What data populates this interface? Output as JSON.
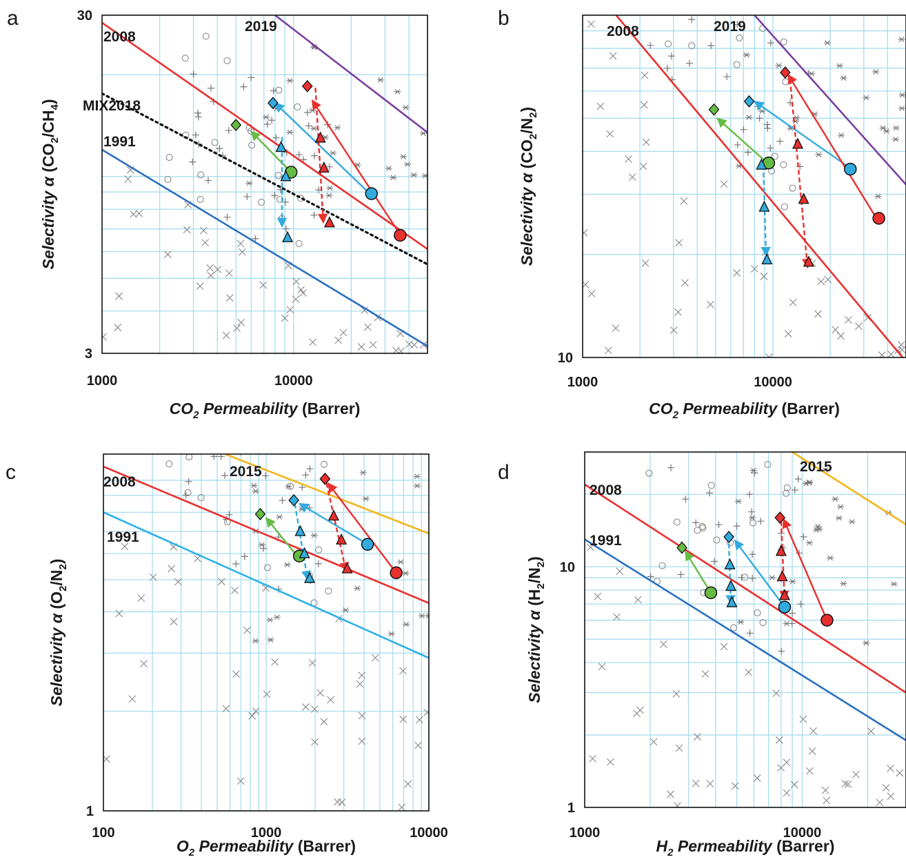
{
  "chart_data": [
    {
      "panel": "a",
      "type": "scatter",
      "xlabel": "CO2 Permeability (Barrer)",
      "ylabel": "Selectivity α (CO2/CH4)",
      "xlog": true,
      "ylog": true,
      "xlim": [
        1000,
        50000
      ],
      "ylim": [
        3,
        30
      ],
      "xticks": [
        "1000",
        "10000"
      ],
      "yticks": [
        "3",
        "30"
      ],
      "bounds": [
        {
          "name": "1991",
          "color": "#2a6fbf",
          "style": "solid",
          "points": [
            [
              1000,
              12
            ],
            [
              50000,
              3.15
            ]
          ]
        },
        {
          "name": "2008",
          "color": "#e8302e",
          "style": "solid",
          "points": [
            [
              1000,
              28.5
            ],
            [
              50000,
              6.1
            ]
          ]
        },
        {
          "name": "MIX2018",
          "color": "#111111",
          "style": "dotted",
          "points": [
            [
              1000,
              17.6
            ],
            [
              50000,
              5.5
            ]
          ]
        },
        {
          "name": "2019",
          "color": "#7a3fa0",
          "style": "solid",
          "points": [
            [
              8000,
              30
            ],
            [
              50000,
              13.5
            ]
          ]
        }
      ],
      "arrows": [
        {
          "color": "#66bb44",
          "style": "solid",
          "from": [
            9700,
            10.3
          ],
          "to": [
            6000,
            13.6
          ]
        },
        {
          "color": "#33aadd",
          "style": "solid",
          "from": [
            24000,
            9.1
          ],
          "to": [
            8000,
            16.5
          ]
        },
        {
          "color": "#33aadd",
          "style": "dashed",
          "from": [
            8700,
            13.1
          ],
          "to": [
            8700,
            7.1
          ]
        },
        {
          "color": "#e8302e",
          "style": "solid",
          "from": [
            35000,
            6.9
          ],
          "to": [
            12500,
            16.8
          ]
        },
        {
          "color": "#e8302e",
          "style": "dashed",
          "from": [
            13000,
            18.3
          ],
          "to": [
            14300,
            7.3
          ]
        }
      ],
      "markers": [
        {
          "shape": "diamond",
          "color": "#66bb44",
          "x": 5000,
          "y": 14.2
        },
        {
          "shape": "circle",
          "color": "#66bb44",
          "x": 9700,
          "y": 10.3
        },
        {
          "shape": "diamond",
          "color": "#33aadd",
          "x": 7800,
          "y": 16.5
        },
        {
          "shape": "circle",
          "color": "#33aadd",
          "x": 25500,
          "y": 8.9
        },
        {
          "shape": "triangle",
          "color": "#33aadd",
          "x": 8600,
          "y": 12.2
        },
        {
          "shape": "triangle",
          "color": "#33aadd",
          "x": 9100,
          "y": 10.0
        },
        {
          "shape": "triangle",
          "color": "#33aadd",
          "x": 9300,
          "y": 6.6
        },
        {
          "shape": "diamond",
          "color": "#e8302e",
          "x": 11800,
          "y": 18.5
        },
        {
          "shape": "circle",
          "color": "#e8302e",
          "x": 36000,
          "y": 6.7
        },
        {
          "shape": "triangle",
          "color": "#e8302e",
          "x": 13800,
          "y": 13.0
        },
        {
          "shape": "triangle",
          "color": "#e8302e",
          "x": 14400,
          "y": 10.6
        },
        {
          "shape": "triangle",
          "color": "#e8302e",
          "x": 15400,
          "y": 7.3
        }
      ]
    },
    {
      "panel": "b",
      "type": "scatter",
      "xlabel": "CO2 Permeability (Barrer)",
      "ylabel": "Selectivity α (CO2/N2)",
      "xlog": true,
      "ylog": true,
      "xlim": [
        1000,
        50000
      ],
      "ylim": [
        10,
        100
      ],
      "xticks": [
        "1000",
        "10000"
      ],
      "yticks": [
        "10"
      ],
      "bounds": [
        {
          "name": "2008",
          "color": "#e8302e",
          "style": "solid",
          "points": [
            [
              1500,
              100
            ],
            [
              48000,
              10
            ]
          ]
        },
        {
          "name": "2019",
          "color": "#7a3fa0",
          "style": "solid",
          "points": [
            [
              8000,
              100
            ],
            [
              50000,
              32
            ]
          ]
        }
      ],
      "arrows": [
        {
          "color": "#66bb44",
          "style": "solid",
          "from": [
            9600,
            36.5
          ],
          "to": [
            5100,
            50
          ]
        },
        {
          "color": "#33aadd",
          "style": "solid",
          "from": [
            25000,
            36
          ],
          "to": [
            8000,
            56
          ]
        },
        {
          "color": "#33aadd",
          "style": "dashed",
          "from": [
            8900,
            36.5
          ],
          "to": [
            9200,
            19.8
          ]
        },
        {
          "color": "#e8302e",
          "style": "solid",
          "from": [
            35000,
            25.5
          ],
          "to": [
            12000,
            67
          ]
        },
        {
          "color": "#e8302e",
          "style": "dashed",
          "from": [
            12300,
            65
          ],
          "to": [
            15200,
            18.3
          ]
        }
      ],
      "markers": [
        {
          "shape": "diamond",
          "color": "#66bb44",
          "x": 4900,
          "y": 53
        },
        {
          "shape": "circle",
          "color": "#66bb44",
          "x": 9500,
          "y": 37
        },
        {
          "shape": "diamond",
          "color": "#33aadd",
          "x": 7500,
          "y": 56
        },
        {
          "shape": "circle",
          "color": "#33aadd",
          "x": 25500,
          "y": 35.5
        },
        {
          "shape": "triangle",
          "color": "#33aadd",
          "x": 8700,
          "y": 36.5
        },
        {
          "shape": "triangle",
          "color": "#33aadd",
          "x": 9000,
          "y": 27.5
        },
        {
          "shape": "triangle",
          "color": "#33aadd",
          "x": 9300,
          "y": 19.3
        },
        {
          "shape": "diamond",
          "color": "#e8302e",
          "x": 11600,
          "y": 68
        },
        {
          "shape": "circle",
          "color": "#e8302e",
          "x": 36000,
          "y": 25.5
        },
        {
          "shape": "triangle",
          "color": "#e8302e",
          "x": 13500,
          "y": 42
        },
        {
          "shape": "triangle",
          "color": "#e8302e",
          "x": 14500,
          "y": 29
        },
        {
          "shape": "triangle",
          "color": "#e8302e",
          "x": 15400,
          "y": 19
        }
      ]
    },
    {
      "panel": "c",
      "type": "scatter",
      "xlabel": "O2 Permeability (Barrer)",
      "ylabel": "Selectivity α (O2/N2)",
      "xlog": true,
      "ylog": true,
      "xlim": [
        100,
        10000
      ],
      "ylim": [
        1,
        12
      ],
      "xticks": [
        "100",
        "1000",
        "10000"
      ],
      "yticks": [
        "1"
      ],
      "bounds": [
        {
          "name": "1991",
          "color": "#29b0e6",
          "style": "solid",
          "points": [
            [
              100,
              8
            ],
            [
              10000,
              2.9
            ]
          ]
        },
        {
          "name": "2008",
          "color": "#e8302e",
          "style": "solid",
          "points": [
            [
              100,
              11
            ],
            [
              10000,
              4.25
            ]
          ]
        },
        {
          "name": "2015",
          "color": "#f4b41a",
          "style": "solid",
          "points": [
            [
              560,
              12
            ],
            [
              10000,
              6.9
            ]
          ]
        }
      ],
      "arrows": [
        {
          "color": "#66bb44",
          "style": "solid",
          "from": [
            1550,
            5.9
          ],
          "to": [
            1000,
            7.7
          ]
        },
        {
          "color": "#33aadd",
          "style": "solid",
          "from": [
            4100,
            6.45
          ],
          "to": [
            1600,
            8.5
          ]
        },
        {
          "color": "#33aadd",
          "style": "dashed",
          "from": [
            1500,
            8.5
          ],
          "to": [
            1800,
            5.0
          ]
        },
        {
          "color": "#e8302e",
          "style": "solid",
          "from": [
            6300,
            5.25
          ],
          "to": [
            2400,
            9.8
          ]
        },
        {
          "color": "#e8302e",
          "style": "dashed",
          "from": [
            2350,
            9.8
          ],
          "to": [
            3100,
            5.3
          ]
        }
      ],
      "markers": [
        {
          "shape": "diamond",
          "color": "#66bb44",
          "x": 920,
          "y": 7.9
        },
        {
          "shape": "circle",
          "color": "#66bb44",
          "x": 1600,
          "y": 5.9
        },
        {
          "shape": "diamond",
          "color": "#33aadd",
          "x": 1480,
          "y": 8.7
        },
        {
          "shape": "circle",
          "color": "#33aadd",
          "x": 4200,
          "y": 6.4
        },
        {
          "shape": "triangle",
          "color": "#33aadd",
          "x": 1620,
          "y": 7.0
        },
        {
          "shape": "triangle",
          "color": "#33aadd",
          "x": 1720,
          "y": 6.0
        },
        {
          "shape": "triangle",
          "color": "#33aadd",
          "x": 1850,
          "y": 5.05
        },
        {
          "shape": "diamond",
          "color": "#e8302e",
          "x": 2300,
          "y": 10.1
        },
        {
          "shape": "circle",
          "color": "#e8302e",
          "x": 6300,
          "y": 5.25
        },
        {
          "shape": "triangle",
          "color": "#e8302e",
          "x": 2600,
          "y": 7.8
        },
        {
          "shape": "triangle",
          "color": "#e8302e",
          "x": 2900,
          "y": 6.6
        },
        {
          "shape": "triangle",
          "color": "#e8302e",
          "x": 3150,
          "y": 5.4
        }
      ]
    },
    {
      "panel": "d",
      "type": "scatter",
      "xlabel": "H2 Permeability (Barrer)",
      "ylabel": "Selectivity α (H2/N2)",
      "xlog": true,
      "ylog": true,
      "xlim": [
        1000,
        30000
      ],
      "ylim": [
        1,
        30
      ],
      "xticks": [
        "1000",
        "10000"
      ],
      "yticks": [
        "1",
        "10"
      ],
      "bounds": [
        {
          "name": "1991",
          "color": "#2a6fbf",
          "style": "solid",
          "points": [
            [
              1000,
              13
            ],
            [
              30000,
              1.9
            ]
          ]
        },
        {
          "name": "2008",
          "color": "#e8302e",
          "style": "solid",
          "points": [
            [
              1000,
              22
            ],
            [
              30000,
              3.0
            ]
          ]
        },
        {
          "name": "2015",
          "color": "#f4b41a",
          "style": "solid",
          "points": [
            [
              9000,
              30
            ],
            [
              30000,
              15
            ]
          ]
        }
      ],
      "arrows": [
        {
          "color": "#66bb44",
          "style": "solid",
          "from": [
            3800,
            7.8
          ],
          "to": [
            2900,
            11.6
          ]
        },
        {
          "color": "#33aadd",
          "style": "solid",
          "from": [
            8300,
            6.8
          ],
          "to": [
            4900,
            12.9
          ]
        },
        {
          "color": "#33aadd",
          "style": "dashed",
          "from": [
            4600,
            12.5
          ],
          "to": [
            4700,
            7.0
          ]
        },
        {
          "color": "#e8302e",
          "style": "solid",
          "from": [
            13000,
            6.0
          ],
          "to": [
            8200,
            15.8
          ]
        },
        {
          "color": "#e8302e",
          "style": "dashed",
          "from": [
            8000,
            15.5
          ],
          "to": [
            8300,
            7.3
          ]
        }
      ],
      "markers": [
        {
          "shape": "diamond",
          "color": "#66bb44",
          "x": 2800,
          "y": 12.0
        },
        {
          "shape": "circle",
          "color": "#66bb44",
          "x": 3800,
          "y": 7.8
        },
        {
          "shape": "diamond",
          "color": "#33aadd",
          "x": 4600,
          "y": 13.3
        },
        {
          "shape": "circle",
          "color": "#33aadd",
          "x": 8300,
          "y": 6.8
        },
        {
          "shape": "triangle",
          "color": "#33aadd",
          "x": 4650,
          "y": 10.2
        },
        {
          "shape": "triangle",
          "color": "#33aadd",
          "x": 4700,
          "y": 8.3
        },
        {
          "shape": "triangle",
          "color": "#33aadd",
          "x": 4750,
          "y": 7.1
        },
        {
          "shape": "diamond",
          "color": "#e8302e",
          "x": 7900,
          "y": 16.0
        },
        {
          "shape": "circle",
          "color": "#e8302e",
          "x": 13000,
          "y": 6.0
        },
        {
          "shape": "triangle",
          "color": "#e8302e",
          "x": 8000,
          "y": 11.6
        },
        {
          "shape": "triangle",
          "color": "#e8302e",
          "x": 8100,
          "y": 9.1
        },
        {
          "shape": "triangle",
          "color": "#e8302e",
          "x": 8300,
          "y": 7.6
        }
      ]
    }
  ]
}
